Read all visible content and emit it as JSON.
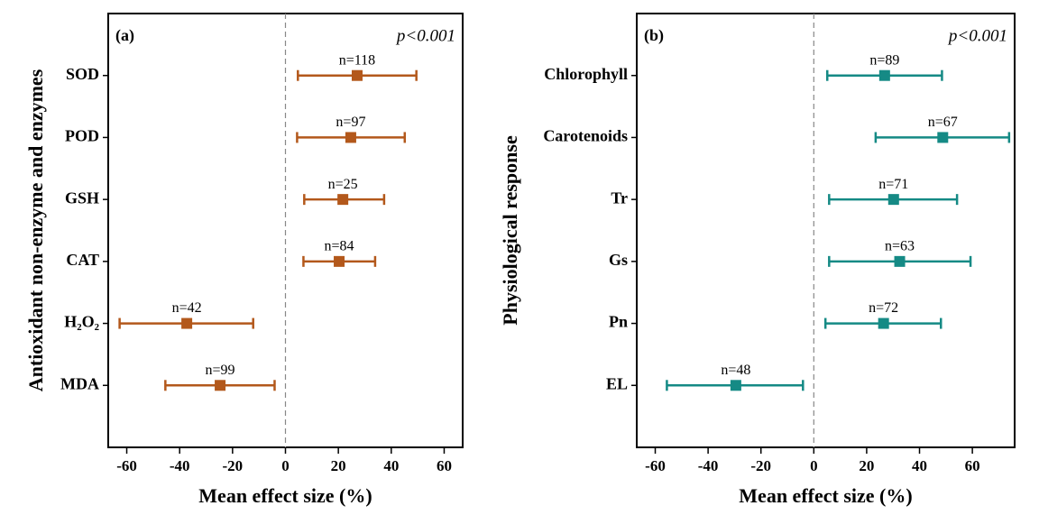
{
  "chart_data": [
    {
      "type": "errorbar",
      "panel_label": "(a)",
      "annotation": "p<0.001",
      "x_label": "Mean effect size (%)",
      "y_label": "Antioxidant non-enzyme and enzymes",
      "categories": [
        "SOD",
        "POD",
        "GSH",
        "CAT",
        "H₂O₂",
        "MDA"
      ],
      "values": [
        27.1,
        24.7,
        21.7,
        20.3,
        -37.3,
        -24.7
      ],
      "lower": [
        4.7,
        4.4,
        7.1,
        6.8,
        -62.7,
        -45.4
      ],
      "upper": [
        49.5,
        45.1,
        37.3,
        33.9,
        -12.2,
        -4.1
      ],
      "value_labels": [
        "n=118",
        "n=97",
        "n=25",
        "n=84",
        "n=42",
        "n=99"
      ],
      "color": "#b3581b",
      "xlim": [
        -67,
        67
      ],
      "xticks": [
        -60,
        -40,
        -20,
        0,
        20,
        40,
        60
      ],
      "refline": 0
    },
    {
      "type": "errorbar",
      "panel_label": "(b)",
      "annotation": "p<0.001",
      "x_label": "Mean effect size (%)",
      "y_label": "Physiological response",
      "categories": [
        "Chlorophyll",
        "Carotenoids",
        "Tr",
        "Gs",
        "Pn",
        "EL"
      ],
      "values": [
        26.8,
        48.8,
        30.2,
        32.5,
        26.4,
        -29.5
      ],
      "lower": [
        5.1,
        23.4,
        5.8,
        5.8,
        4.4,
        -55.6
      ],
      "upper": [
        48.5,
        73.9,
        54.2,
        59.3,
        48.1,
        -4.1
      ],
      "value_labels": [
        "n=89",
        "n=67",
        "n=71",
        "n=63",
        "n=72",
        "n=48"
      ],
      "color": "#158a85",
      "xlim": [
        -67,
        76
      ],
      "xticks": [
        -60,
        -40,
        -20,
        0,
        20,
        40,
        60
      ],
      "refline": 0
    }
  ]
}
